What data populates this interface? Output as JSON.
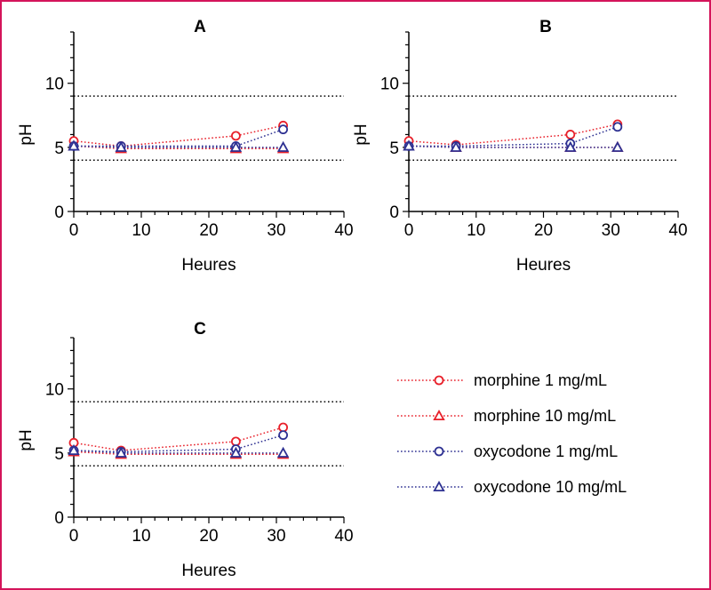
{
  "chart_data": [
    {
      "type": "line",
      "title": "A",
      "xlabel": "Heures",
      "ylabel": "pH",
      "xlim": [
        0,
        40
      ],
      "ylim": [
        0,
        14
      ],
      "xticks": [
        0,
        10,
        20,
        30,
        40
      ],
      "yticks": [
        0,
        5,
        10
      ],
      "reference_lines": [
        9,
        4
      ],
      "x": [
        0,
        7,
        24,
        31
      ],
      "series": [
        {
          "name": "morphine 1 mg/mL",
          "marker": "circle",
          "color": "#e8202a",
          "values": [
            5.5,
            5.1,
            5.9,
            6.7
          ]
        },
        {
          "name": "morphine 10 mg/mL",
          "marker": "triangle",
          "color": "#e8202a",
          "values": [
            5.1,
            4.9,
            4.9,
            4.9
          ]
        },
        {
          "name": "oxycodone 1 mg/mL",
          "marker": "circle",
          "color": "#2e3192",
          "values": [
            5.1,
            5.1,
            5.1,
            6.4
          ]
        },
        {
          "name": "oxycodone 10 mg/mL",
          "marker": "triangle",
          "color": "#2e3192",
          "values": [
            5.1,
            5.0,
            5.0,
            5.0
          ]
        }
      ]
    },
    {
      "type": "line",
      "title": "B",
      "xlabel": "Heures",
      "ylabel": "pH",
      "xlim": [
        0,
        40
      ],
      "ylim": [
        0,
        14
      ],
      "xticks": [
        0,
        10,
        20,
        30,
        40
      ],
      "yticks": [
        0,
        5,
        10
      ],
      "reference_lines": [
        9,
        4
      ],
      "x": [
        0,
        7,
        24,
        31
      ],
      "series": [
        {
          "name": "morphine 1 mg/mL",
          "marker": "circle",
          "color": "#e8202a",
          "values": [
            5.5,
            5.2,
            6.0,
            6.8
          ]
        },
        {
          "name": "morphine 10 mg/mL",
          "marker": "triangle",
          "color": "#e8202a",
          "values": [
            5.1,
            5.0,
            5.0,
            5.0
          ]
        },
        {
          "name": "oxycodone 1 mg/mL",
          "marker": "circle",
          "color": "#2e3192",
          "values": [
            5.1,
            5.1,
            5.3,
            6.6
          ]
        },
        {
          "name": "oxycodone 10 mg/mL",
          "marker": "triangle",
          "color": "#2e3192",
          "values": [
            5.1,
            5.0,
            5.0,
            5.0
          ]
        }
      ]
    },
    {
      "type": "line",
      "title": "C",
      "xlabel": "Heures",
      "ylabel": "pH",
      "xlim": [
        0,
        40
      ],
      "ylim": [
        0,
        14
      ],
      "xticks": [
        0,
        10,
        20,
        30,
        40
      ],
      "yticks": [
        0,
        5,
        10
      ],
      "reference_lines": [
        9,
        4
      ],
      "x": [
        0,
        7,
        24,
        31
      ],
      "series": [
        {
          "name": "morphine 1 mg/mL",
          "marker": "circle",
          "color": "#e8202a",
          "values": [
            5.8,
            5.2,
            5.9,
            7.0
          ]
        },
        {
          "name": "morphine 10 mg/mL",
          "marker": "triangle",
          "color": "#e8202a",
          "values": [
            5.1,
            4.9,
            4.9,
            4.9
          ]
        },
        {
          "name": "oxycodone 1 mg/mL",
          "marker": "circle",
          "color": "#2e3192",
          "values": [
            5.2,
            5.1,
            5.3,
            6.4
          ]
        },
        {
          "name": "oxycodone 10 mg/mL",
          "marker": "triangle",
          "color": "#2e3192",
          "values": [
            5.2,
            5.0,
            5.0,
            5.0
          ]
        }
      ]
    }
  ],
  "legend": {
    "placement": "bottom-right",
    "items": [
      {
        "label": "morphine 1 mg/mL",
        "marker": "circle",
        "color": "#e8202a"
      },
      {
        "label": "morphine 10 mg/mL",
        "marker": "triangle",
        "color": "#e8202a"
      },
      {
        "label": "oxycodone 1 mg/mL",
        "marker": "circle",
        "color": "#2e3192"
      },
      {
        "label": "oxycodone 10 mg/mL",
        "marker": "triangle",
        "color": "#2e3192"
      }
    ]
  },
  "colors": {
    "frame_border": "#d4145a",
    "morphine": "#e8202a",
    "oxycodone": "#2e3192",
    "axis": "#000000"
  }
}
